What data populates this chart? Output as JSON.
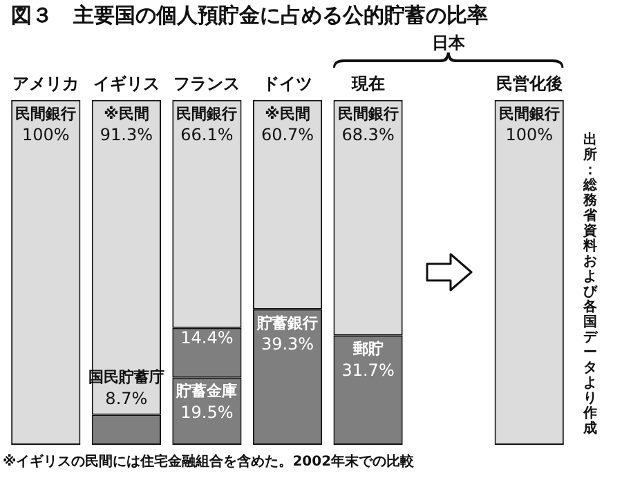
{
  "chart_data": {
    "type": "bar",
    "title": "図３　主要国の個人預貯金に占める公的貯蓄の比率",
    "categories": [
      "アメリカ",
      "イギリス",
      "フランス",
      "ドイツ",
      "現在",
      null,
      "民営化後"
    ],
    "stacked": true,
    "grid": false,
    "legend": false,
    "tick_labels": "x",
    "series": [
      {
        "color": "#7f7f7f",
        "values": [
          null,
          8.7,
          19.5,
          39.3,
          31.7,
          null,
          null
        ],
        "value_labels": [
          null,
          "国民貯蓄庁 8.7%",
          "貯蓄金庫 19.5%",
          "貯蓄銀行 39.3%",
          "郵貯 31.7%",
          null,
          null
        ]
      },
      {
        "color": "#7f7f7f",
        "values": [
          null,
          null,
          14.4,
          null,
          null,
          null,
          null
        ],
        "value_labels": [
          null,
          null,
          "14.4%",
          null,
          null,
          null,
          null
        ]
      },
      {
        "color": "#dcdcdc",
        "values": [
          100,
          91.3,
          66.1,
          60.7,
          68.3,
          null,
          100
        ],
        "value_labels": [
          "民間銀行 100%",
          "※民間 91.3%",
          "民間銀行 66.1%",
          "※民間 60.7%",
          "民間銀行 68.3%",
          null,
          "民間銀行 100%"
        ]
      }
    ],
    "annotations": [
      "日本",
      "出所：総務省資料および各国データより作成",
      "※イギリスの民間には住宅金融組合を含めた。2002年末での比較"
    ]
  }
}
